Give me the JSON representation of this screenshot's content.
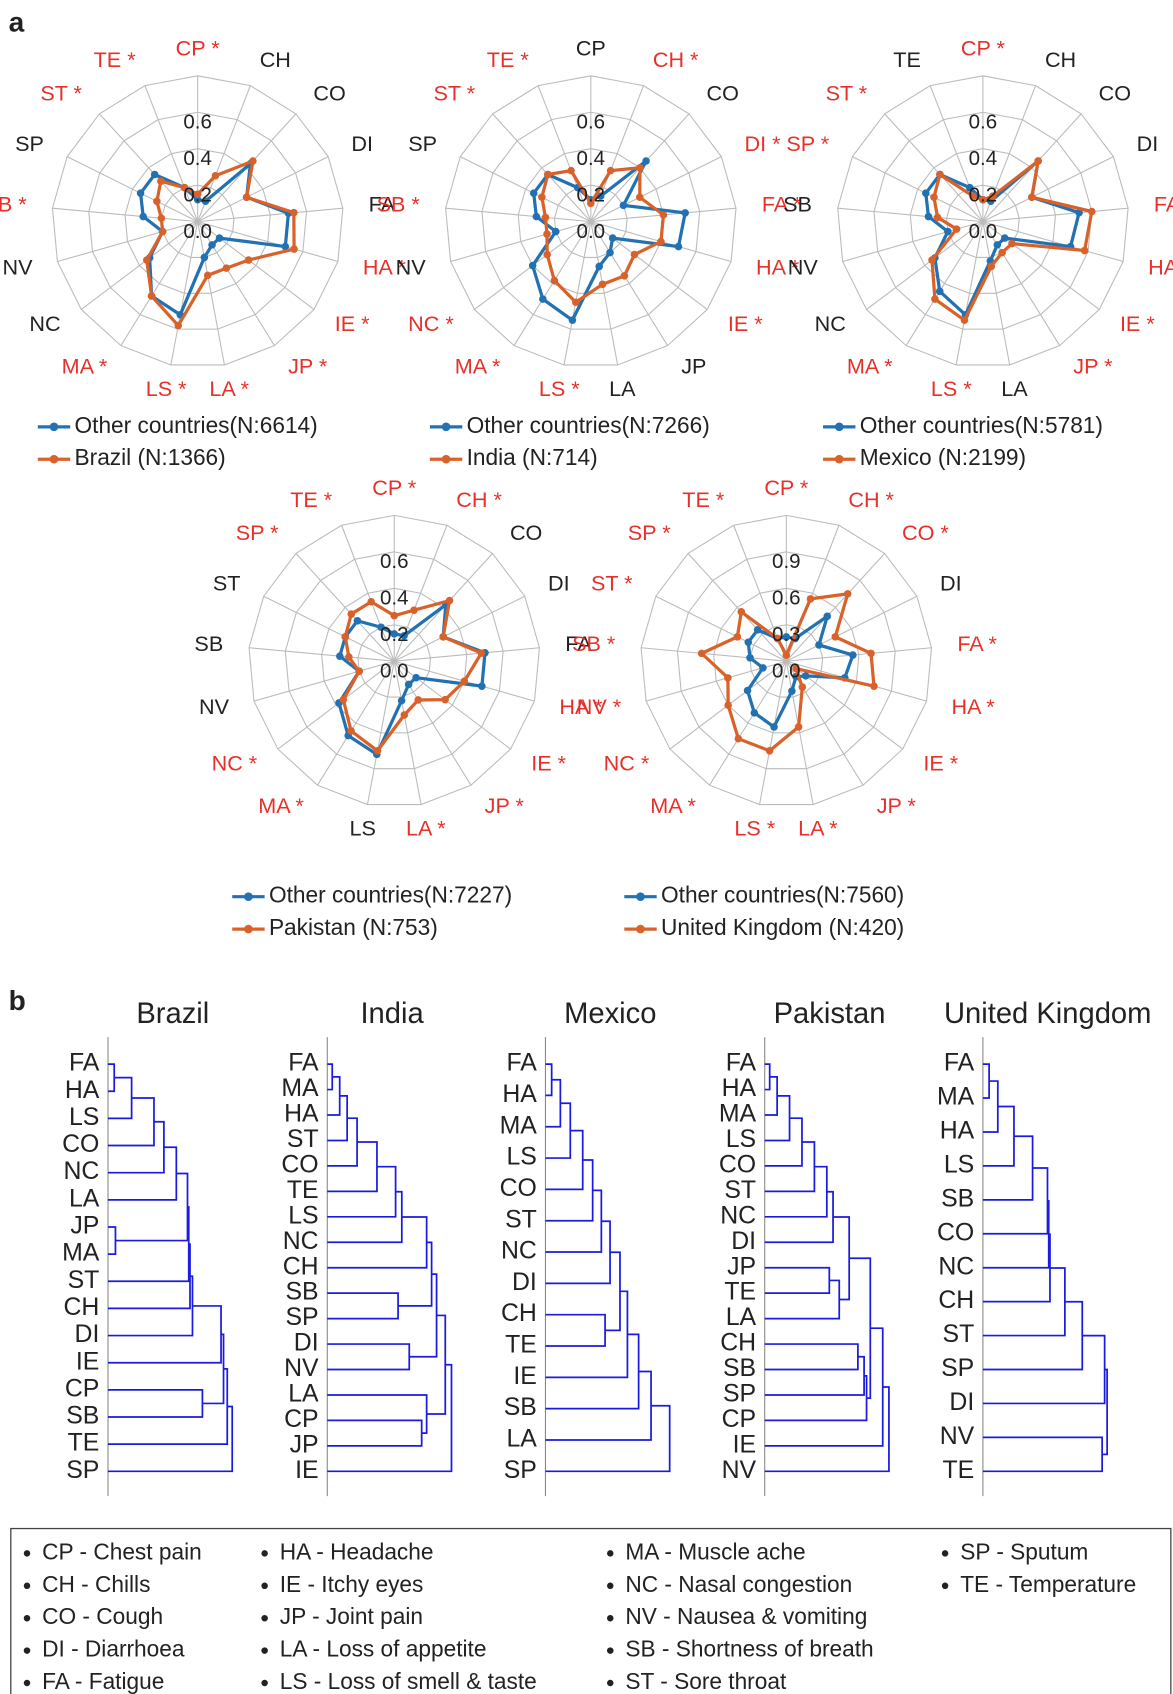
{
  "panel_labels": [
    "a",
    "b"
  ],
  "chart_data": [
    {
      "type": "radar",
      "categories": [
        "CP *",
        "CH",
        "CO",
        "DI",
        "FA",
        "HA *",
        "IE *",
        "JP *",
        "LA *",
        "LS *",
        "MA *",
        "NC",
        "NV",
        "SB *",
        "SP",
        "ST *",
        "TE *"
      ],
      "ylim": [
        0,
        0.8
      ],
      "yticks": [
        {
          "value": 0,
          "label": "0.0"
        },
        {
          "value": 0.2,
          "label": "0.2"
        },
        {
          "value": 0.4,
          "label": "0.4"
        },
        {
          "value": 0.6,
          "label": "0.6"
        }
      ],
      "marked_color": "#e8302a",
      "series": [
        {
          "name": "Other countries(N:6614)",
          "color": "#2271b3",
          "values": [
            0.12,
            0.12,
            0.43,
            0.3,
            0.5,
            0.5,
            0.15,
            0.15,
            0.2,
            0.52,
            0.48,
            0.33,
            0.2,
            0.3,
            0.35,
            0.35,
            0.2
          ]
        },
        {
          "name": "Brazil (N:1366)",
          "color": "#d9622b",
          "values": [
            0.15,
            0.27,
            0.45,
            0.3,
            0.53,
            0.55,
            0.35,
            0.3,
            0.3,
            0.58,
            0.48,
            0.35,
            0.2,
            0.2,
            0.25,
            0.3,
            0.2
          ]
        }
      ]
    },
    {
      "type": "radar",
      "categories": [
        "CP",
        "CH *",
        "CO",
        "DI *",
        "FA *",
        "HA *",
        "IE *",
        "JP",
        "LA",
        "LS *",
        "MA *",
        "NC *",
        "NV",
        "SB *",
        "SP",
        "ST *",
        "TE *"
      ],
      "ylim": [
        0,
        0.8
      ],
      "yticks": [
        {
          "value": 0,
          "label": "0.0"
        },
        {
          "value": 0.2,
          "label": "0.2"
        },
        {
          "value": 0.4,
          "label": "0.4"
        },
        {
          "value": 0.6,
          "label": "0.6"
        }
      ],
      "marked_color": "#e8302a",
      "series": [
        {
          "name": "Other countries(N:7266)",
          "color": "#2271b3",
          "values": [
            0.12,
            0.15,
            0.45,
            0.2,
            0.52,
            0.5,
            0.15,
            0.2,
            0.25,
            0.55,
            0.5,
            0.4,
            0.2,
            0.3,
            0.35,
            0.35,
            0.2
          ]
        },
        {
          "name": "India (N:714)",
          "color": "#d9622b",
          "values": [
            0.1,
            0.3,
            0.4,
            0.3,
            0.4,
            0.4,
            0.3,
            0.35,
            0.35,
            0.45,
            0.38,
            0.3,
            0.25,
            0.25,
            0.3,
            0.35,
            0.3
          ]
        }
      ]
    },
    {
      "type": "radar",
      "categories": [
        "CP *",
        "CH",
        "CO",
        "DI",
        "FA *",
        "HA *",
        "IE *",
        "JP *",
        "LA",
        "LS *",
        "MA *",
        "NC",
        "NV",
        "SB",
        "SP *",
        "ST *",
        "TE"
      ],
      "ylim": [
        0,
        0.8
      ],
      "yticks": [
        {
          "value": 0,
          "label": "0.0"
        },
        {
          "value": 0.2,
          "label": "0.2"
        },
        {
          "value": 0.4,
          "label": "0.4"
        },
        {
          "value": 0.6,
          "label": "0.6"
        }
      ],
      "marked_color": "#e8302a",
      "series": [
        {
          "name": "Other countries(N:5781)",
          "color": "#2271b3",
          "values": [
            0.12,
            0.12,
            0.45,
            0.3,
            0.53,
            0.5,
            0.15,
            0.15,
            0.22,
            0.52,
            0.45,
            0.33,
            0.2,
            0.3,
            0.35,
            0.35,
            0.2
          ]
        },
        {
          "name": "Mexico (N:2199)",
          "color": "#d9622b",
          "values": [
            0.12,
            0.15,
            0.45,
            0.3,
            0.6,
            0.58,
            0.2,
            0.2,
            0.25,
            0.55,
            0.5,
            0.35,
            0.15,
            0.25,
            0.3,
            0.35,
            0.15
          ]
        }
      ]
    },
    {
      "type": "radar",
      "categories": [
        "CP *",
        "CH *",
        "CO",
        "DI",
        "FA",
        "HA *",
        "IE *",
        "JP *",
        "LA *",
        "LS",
        "MA *",
        "NC *",
        "NV",
        "SB",
        "ST",
        "SP *",
        "TE *"
      ],
      "ylim": [
        0,
        0.8
      ],
      "yticks": [
        {
          "value": 0,
          "label": "0.0"
        },
        {
          "value": 0.2,
          "label": "0.2"
        },
        {
          "value": 0.4,
          "label": "0.4"
        },
        {
          "value": 0.6,
          "label": "0.6"
        }
      ],
      "marked_color": "#e8302a",
      "series": [
        {
          "name": "Other countries(N:7227)",
          "color": "#2271b3",
          "values": [
            0.15,
            0.15,
            0.42,
            0.3,
            0.5,
            0.5,
            0.15,
            0.15,
            0.22,
            0.52,
            0.48,
            0.38,
            0.2,
            0.3,
            0.3,
            0.3,
            0.2
          ]
        },
        {
          "name": "Pakistan (N:753)",
          "color": "#d9622b",
          "values": [
            0.25,
            0.3,
            0.45,
            0.3,
            0.48,
            0.4,
            0.35,
            0.25,
            0.3,
            0.5,
            0.45,
            0.35,
            0.2,
            0.25,
            0.3,
            0.35,
            0.35
          ]
        }
      ]
    },
    {
      "type": "radar",
      "categories": [
        "CP *",
        "CH *",
        "CO *",
        "DI",
        "FA *",
        "HA *",
        "IE *",
        "JP *",
        "LA *",
        "LS *",
        "MA *",
        "NC *",
        "NV *",
        "SB *",
        "ST *",
        "SP *",
        "TE *"
      ],
      "ylim": [
        0,
        1.2
      ],
      "yticks": [
        {
          "value": 0,
          "label": "0.0"
        },
        {
          "value": 0.3,
          "label": "0.3"
        },
        {
          "value": 0.6,
          "label": "0.6"
        },
        {
          "value": 0.9,
          "label": "0.9"
        }
      ],
      "marked_color": "#e8302a",
      "series": [
        {
          "name": "Other countries(N:7560)",
          "color": "#2271b3",
          "values": [
            0.2,
            0.2,
            0.5,
            0.3,
            0.55,
            0.5,
            0.2,
            0.15,
            0.25,
            0.55,
            0.5,
            0.4,
            0.2,
            0.3,
            0.35,
            0.35,
            0.2
          ]
        },
        {
          "name": "United Kingdom (N:420)",
          "color": "#d9622b",
          "values": [
            0.05,
            0.55,
            0.75,
            0.45,
            0.7,
            0.75,
            0.1,
            0.25,
            0.55,
            0.75,
            0.75,
            0.6,
            0.5,
            0.7,
            0.45,
            0.55,
            0.2
          ]
        }
      ]
    },
    {
      "type": "dendrogram",
      "title": "Brazil",
      "color": "#1a1ae0",
      "leaves": [
        "FA",
        "HA",
        "LS",
        "CO",
        "NC",
        "LA",
        "JP",
        "MA",
        "ST",
        "CH",
        "DI",
        "IE",
        "CP",
        "SB",
        "TE",
        "SP"
      ],
      "merges": [
        [
          0,
          1,
          0.05
        ],
        [
          16,
          2,
          0.19
        ],
        [
          17,
          3,
          0.37
        ],
        [
          18,
          4,
          0.45
        ],
        [
          19,
          5,
          0.55
        ],
        [
          6,
          7,
          0.06
        ],
        [
          20,
          21,
          0.64
        ],
        [
          22,
          8,
          0.65
        ],
        [
          23,
          9,
          0.66
        ],
        [
          24,
          10,
          0.68
        ],
        [
          12,
          13,
          0.76
        ],
        [
          25,
          11,
          0.91
        ],
        [
          27,
          26,
          0.93
        ],
        [
          28,
          14,
          0.96
        ],
        [
          29,
          15,
          1.0
        ]
      ]
    },
    {
      "type": "dendrogram",
      "title": "India",
      "color": "#1a1ae0",
      "leaves": [
        "FA",
        "MA",
        "HA",
        "ST",
        "CO",
        "TE",
        "LS",
        "NC",
        "CH",
        "SB",
        "SP",
        "DI",
        "NV",
        "LA",
        "CP",
        "JP",
        "IE"
      ],
      "merges": [
        [
          0,
          1,
          0.04
        ],
        [
          17,
          2,
          0.1
        ],
        [
          18,
          3,
          0.16
        ],
        [
          19,
          4,
          0.24
        ],
        [
          20,
          5,
          0.4
        ],
        [
          21,
          6,
          0.55
        ],
        [
          22,
          7,
          0.6
        ],
        [
          23,
          8,
          0.8
        ],
        [
          9,
          10,
          0.57
        ],
        [
          11,
          12,
          0.66
        ],
        [
          24,
          25,
          0.84
        ],
        [
          27,
          26,
          0.88
        ],
        [
          14,
          15,
          0.76
        ],
        [
          29,
          13,
          0.8
        ],
        [
          28,
          30,
          0.95
        ],
        [
          31,
          16,
          1.0
        ]
      ]
    },
    {
      "type": "dendrogram",
      "title": "Mexico",
      "color": "#1a1ae0",
      "leaves": [
        "FA",
        "HA",
        "MA",
        "LS",
        "CO",
        "ST",
        "NC",
        "DI",
        "CH",
        "TE",
        "IE",
        "SB",
        "LA",
        "SP"
      ],
      "merges": [
        [
          0,
          1,
          0.05
        ],
        [
          14,
          2,
          0.12
        ],
        [
          15,
          3,
          0.2
        ],
        [
          16,
          4,
          0.3
        ],
        [
          17,
          5,
          0.38
        ],
        [
          18,
          6,
          0.45
        ],
        [
          19,
          7,
          0.52
        ],
        [
          8,
          9,
          0.48
        ],
        [
          20,
          21,
          0.6
        ],
        [
          22,
          10,
          0.66
        ],
        [
          23,
          11,
          0.75
        ],
        [
          24,
          12,
          0.85
        ],
        [
          25,
          13,
          1.0
        ]
      ]
    },
    {
      "type": "dendrogram",
      "title": "Pakistan",
      "color": "#1a1ae0",
      "leaves": [
        "FA",
        "HA",
        "MA",
        "LS",
        "CO",
        "ST",
        "NC",
        "DI",
        "JP",
        "TE",
        "LA",
        "CH",
        "SB",
        "SP",
        "CP",
        "IE",
        "NV"
      ],
      "merges": [
        [
          0,
          1,
          0.04
        ],
        [
          17,
          2,
          0.1
        ],
        [
          18,
          3,
          0.2
        ],
        [
          19,
          4,
          0.3
        ],
        [
          20,
          5,
          0.4
        ],
        [
          21,
          6,
          0.5
        ],
        [
          22,
          7,
          0.55
        ],
        [
          8,
          9,
          0.52
        ],
        [
          24,
          10,
          0.6
        ],
        [
          23,
          25,
          0.68
        ],
        [
          11,
          12,
          0.75
        ],
        [
          27,
          13,
          0.8
        ],
        [
          28,
          14,
          0.82
        ],
        [
          26,
          29,
          0.85
        ],
        [
          30,
          15,
          0.95
        ],
        [
          31,
          16,
          1.0
        ]
      ]
    },
    {
      "type": "dendrogram",
      "title": "United Kingdom",
      "color": "#1a1ae0",
      "leaves": [
        "FA",
        "MA",
        "HA",
        "LS",
        "SB",
        "CO",
        "NC",
        "CH",
        "ST",
        "SP",
        "DI",
        "NV",
        "TE"
      ],
      "merges": [
        [
          0,
          1,
          0.05
        ],
        [
          13,
          2,
          0.12
        ],
        [
          14,
          3,
          0.25
        ],
        [
          15,
          4,
          0.4
        ],
        [
          16,
          5,
          0.52
        ],
        [
          17,
          6,
          0.53
        ],
        [
          18,
          7,
          0.54
        ],
        [
          19,
          8,
          0.66
        ],
        [
          20,
          9,
          0.8
        ],
        [
          11,
          12,
          0.96
        ],
        [
          21,
          10,
          0.98
        ],
        [
          23,
          22,
          1.0
        ]
      ]
    }
  ],
  "glossary": [
    [
      "CP - Chest pain",
      "CH - Chills",
      "CO - Cough",
      "DI - Diarrhoea",
      "FA - Fatigue"
    ],
    [
      "HA - Headache",
      "IE - Itchy eyes",
      "JP - Joint pain",
      "LA - Loss of appetite",
      "LS - Loss of smell & taste"
    ],
    [
      "MA - Muscle ache",
      "NC - Nasal congestion",
      "NV - Nausea & vomiting",
      "SB - Shortness of breath",
      "ST - Sore throat"
    ],
    [
      "SP - Sputum",
      "TE - Temperature"
    ]
  ]
}
